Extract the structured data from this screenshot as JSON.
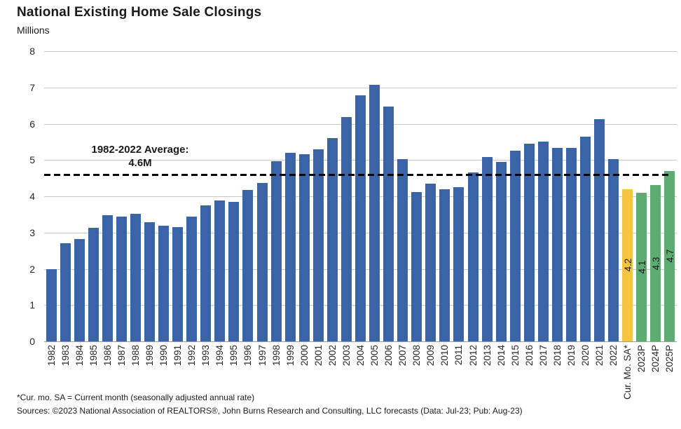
{
  "header": {
    "title": "National Existing Home Sale Closings",
    "units_label": "Millions"
  },
  "footer": {
    "note": "*Cur. mo. SA = Current month (seasonally adjusted annual rate)",
    "sources": "Sources: ©2023 National Association of REALTORS®, John Burns Research and Consulting, LLC forecasts (Data: Jul-23; Pub: Aug-23)"
  },
  "chart_data": {
    "type": "bar",
    "title": "National Existing Home Sale Closings",
    "ylabel": "Millions",
    "xlabel": "",
    "ylim": [
      0,
      8
    ],
    "yticks": [
      0,
      1,
      2,
      3,
      4,
      5,
      6,
      7,
      8
    ],
    "grid": true,
    "legend": false,
    "x_label_rotation": -90,
    "average_line": {
      "value": 4.6,
      "label_line1": "1982-2022 Average:",
      "label_line2": "4.6M",
      "style": "dashed"
    },
    "colors": {
      "historical": "#3B63A8",
      "current": "#F5C542",
      "forecast": "#5FAC72",
      "gridline": "#c9c9c9",
      "axis": "#9a9a9a",
      "average_line": "#000000",
      "text": "#1a1a1a"
    },
    "points": [
      {
        "category": "1982",
        "value": 1.99,
        "group": "historical"
      },
      {
        "category": "1983",
        "value": 2.7,
        "group": "historical"
      },
      {
        "category": "1984",
        "value": 2.83,
        "group": "historical"
      },
      {
        "category": "1985",
        "value": 3.13,
        "group": "historical"
      },
      {
        "category": "1986",
        "value": 3.47,
        "group": "historical"
      },
      {
        "category": "1987",
        "value": 3.44,
        "group": "historical"
      },
      {
        "category": "1988",
        "value": 3.51,
        "group": "historical"
      },
      {
        "category": "1989",
        "value": 3.29,
        "group": "historical"
      },
      {
        "category": "1990",
        "value": 3.19,
        "group": "historical"
      },
      {
        "category": "1991",
        "value": 3.15,
        "group": "historical"
      },
      {
        "category": "1992",
        "value": 3.43,
        "group": "historical"
      },
      {
        "category": "1993",
        "value": 3.74,
        "group": "historical"
      },
      {
        "category": "1994",
        "value": 3.89,
        "group": "historical"
      },
      {
        "category": "1995",
        "value": 3.85,
        "group": "historical"
      },
      {
        "category": "1996",
        "value": 4.17,
        "group": "historical"
      },
      {
        "category": "1997",
        "value": 4.37,
        "group": "historical"
      },
      {
        "category": "1998",
        "value": 4.97,
        "group": "historical"
      },
      {
        "category": "1999",
        "value": 5.19,
        "group": "historical"
      },
      {
        "category": "2000",
        "value": 5.15,
        "group": "historical"
      },
      {
        "category": "2001",
        "value": 5.3,
        "group": "historical"
      },
      {
        "category": "2002",
        "value": 5.6,
        "group": "historical"
      },
      {
        "category": "2003",
        "value": 6.18,
        "group": "historical"
      },
      {
        "category": "2004",
        "value": 6.78,
        "group": "historical"
      },
      {
        "category": "2005",
        "value": 7.08,
        "group": "historical"
      },
      {
        "category": "2006",
        "value": 6.48,
        "group": "historical"
      },
      {
        "category": "2007",
        "value": 5.03,
        "group": "historical"
      },
      {
        "category": "2008",
        "value": 4.11,
        "group": "historical"
      },
      {
        "category": "2009",
        "value": 4.34,
        "group": "historical"
      },
      {
        "category": "2010",
        "value": 4.19,
        "group": "historical"
      },
      {
        "category": "2011",
        "value": 4.26,
        "group": "historical"
      },
      {
        "category": "2012",
        "value": 4.66,
        "group": "historical"
      },
      {
        "category": "2013",
        "value": 5.09,
        "group": "historical"
      },
      {
        "category": "2014",
        "value": 4.94,
        "group": "historical"
      },
      {
        "category": "2015",
        "value": 5.25,
        "group": "historical"
      },
      {
        "category": "2016",
        "value": 5.45,
        "group": "historical"
      },
      {
        "category": "2017",
        "value": 5.51,
        "group": "historical"
      },
      {
        "category": "2018",
        "value": 5.34,
        "group": "historical"
      },
      {
        "category": "2019",
        "value": 5.34,
        "group": "historical"
      },
      {
        "category": "2020",
        "value": 5.64,
        "group": "historical"
      },
      {
        "category": "2021",
        "value": 6.12,
        "group": "historical"
      },
      {
        "category": "2022",
        "value": 5.03,
        "group": "historical"
      },
      {
        "category": "Cur. Mo. SA*",
        "value": 4.2,
        "group": "current",
        "value_label": "4.2"
      },
      {
        "category": "2023P",
        "value": 4.1,
        "group": "forecast",
        "value_label": "4.1"
      },
      {
        "category": "2024P",
        "value": 4.3,
        "group": "forecast",
        "value_label": "4.3"
      },
      {
        "category": "2025P",
        "value": 4.7,
        "group": "forecast",
        "value_label": "4.7"
      }
    ]
  }
}
